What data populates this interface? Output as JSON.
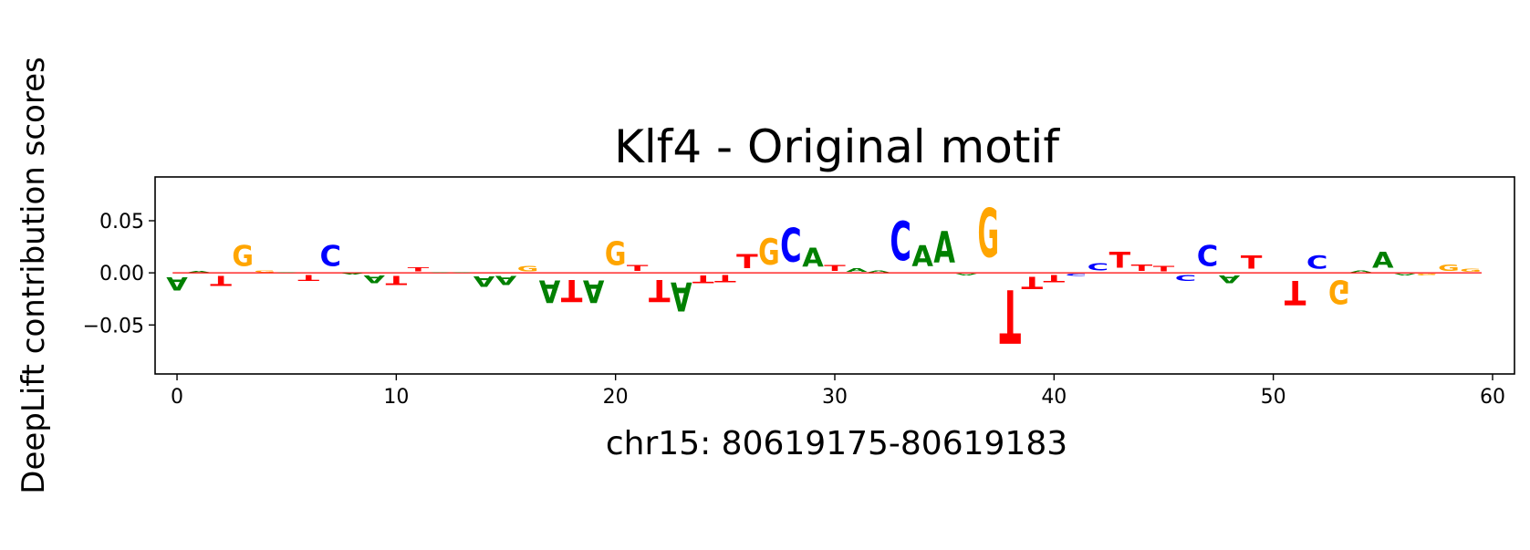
{
  "chart_data": {
    "type": "sequence-logo",
    "title": "Klf4 - Original motif",
    "xlabel": "chr15: 80619175-80619183",
    "ylabel": "DeepLift contribution scores",
    "xlim": [
      -1,
      61
    ],
    "ylim": [
      -0.097,
      0.092
    ],
    "x_ticks": [
      0,
      10,
      20,
      30,
      40,
      50,
      60
    ],
    "y_ticks": [
      -0.05,
      0.0,
      0.05
    ],
    "y_tick_labels": [
      "−0.05",
      "0.00",
      "0.05"
    ],
    "colors": {
      "A": "#008000",
      "C": "#0000ff",
      "G": "#ffa500",
      "T": "#ff0000"
    },
    "positions": [
      {
        "pos": 0,
        "base": "A",
        "score": -0.02
      },
      {
        "pos": 1,
        "base": "A",
        "score": 0.002
      },
      {
        "pos": 2,
        "base": "T",
        "score": -0.015
      },
      {
        "pos": 3,
        "base": "G",
        "score": 0.032
      },
      {
        "pos": 4,
        "base": "G",
        "score": 0.003
      },
      {
        "pos": 5,
        "base": "A",
        "score": 0.001
      },
      {
        "pos": 6,
        "base": "T",
        "score": -0.009
      },
      {
        "pos": 7,
        "base": "C",
        "score": 0.032
      },
      {
        "pos": 8,
        "base": "A",
        "score": -0.002
      },
      {
        "pos": 9,
        "base": "A",
        "score": -0.012
      },
      {
        "pos": 10,
        "base": "T",
        "score": -0.014
      },
      {
        "pos": 11,
        "base": "T",
        "score": 0.006
      },
      {
        "pos": 12,
        "base": "A",
        "score": 0.001
      },
      {
        "pos": 13,
        "base": "A",
        "score": 0.001
      },
      {
        "pos": 14,
        "base": "A",
        "score": -0.016
      },
      {
        "pos": 15,
        "base": "A",
        "score": -0.014
      },
      {
        "pos": 16,
        "base": "G",
        "score": 0.008
      },
      {
        "pos": 17,
        "base": "A",
        "score": -0.035
      },
      {
        "pos": 18,
        "base": "T",
        "score": -0.034
      },
      {
        "pos": 19,
        "base": "A",
        "score": -0.035
      },
      {
        "pos": 20,
        "base": "G",
        "score": 0.036
      },
      {
        "pos": 21,
        "base": "T",
        "score": 0.009
      },
      {
        "pos": 22,
        "base": "T",
        "score": -0.034
      },
      {
        "pos": 23,
        "base": "A",
        "score": -0.045
      },
      {
        "pos": 24,
        "base": "T",
        "score": -0.012
      },
      {
        "pos": 25,
        "base": "T",
        "score": -0.011
      },
      {
        "pos": 26,
        "base": "T",
        "score": 0.022
      },
      {
        "pos": 27,
        "base": "G",
        "score": 0.04
      },
      {
        "pos": 28,
        "base": "C",
        "score": 0.052
      },
      {
        "pos": 29,
        "base": "A",
        "score": 0.029
      },
      {
        "pos": 30,
        "base": "T",
        "score": 0.009
      },
      {
        "pos": 31,
        "base": "A",
        "score": 0.005
      },
      {
        "pos": 32,
        "base": "A",
        "score": 0.003
      },
      {
        "pos": 33,
        "base": "C",
        "score": 0.06
      },
      {
        "pos": 34,
        "base": "A",
        "score": 0.032
      },
      {
        "pos": 35,
        "base": "A",
        "score": 0.048
      },
      {
        "pos": 36,
        "base": "A",
        "score": -0.003
      },
      {
        "pos": 37,
        "base": "G",
        "score": 0.075
      },
      {
        "pos": 38,
        "base": "T",
        "score": -0.082
      },
      {
        "pos": 39,
        "base": "T",
        "score": -0.019
      },
      {
        "pos": 40,
        "base": "T",
        "score": -0.011
      },
      {
        "pos": 41,
        "base": "C",
        "score": -0.004
      },
      {
        "pos": 42,
        "base": "C",
        "score": 0.011
      },
      {
        "pos": 43,
        "base": "T",
        "score": 0.025
      },
      {
        "pos": 44,
        "base": "T",
        "score": 0.01
      },
      {
        "pos": 45,
        "base": "T",
        "score": 0.008
      },
      {
        "pos": 46,
        "base": "C",
        "score": -0.009
      },
      {
        "pos": 47,
        "base": "C",
        "score": 0.032
      },
      {
        "pos": 48,
        "base": "A",
        "score": -0.012
      },
      {
        "pos": 49,
        "base": "T",
        "score": 0.02
      },
      {
        "pos": 50,
        "base": "T",
        "score": 0.001
      },
      {
        "pos": 51,
        "base": "T",
        "score": -0.037
      },
      {
        "pos": 52,
        "base": "C",
        "score": 0.02
      },
      {
        "pos": 53,
        "base": "G",
        "score": -0.036
      },
      {
        "pos": 54,
        "base": "A",
        "score": 0.003
      },
      {
        "pos": 55,
        "base": "A",
        "score": 0.025
      },
      {
        "pos": 56,
        "base": "A",
        "score": -0.003
      },
      {
        "pos": 57,
        "base": "G",
        "score": -0.003
      },
      {
        "pos": 58,
        "base": "G",
        "score": 0.01
      },
      {
        "pos": 59,
        "base": "G",
        "score": 0.004
      }
    ]
  }
}
